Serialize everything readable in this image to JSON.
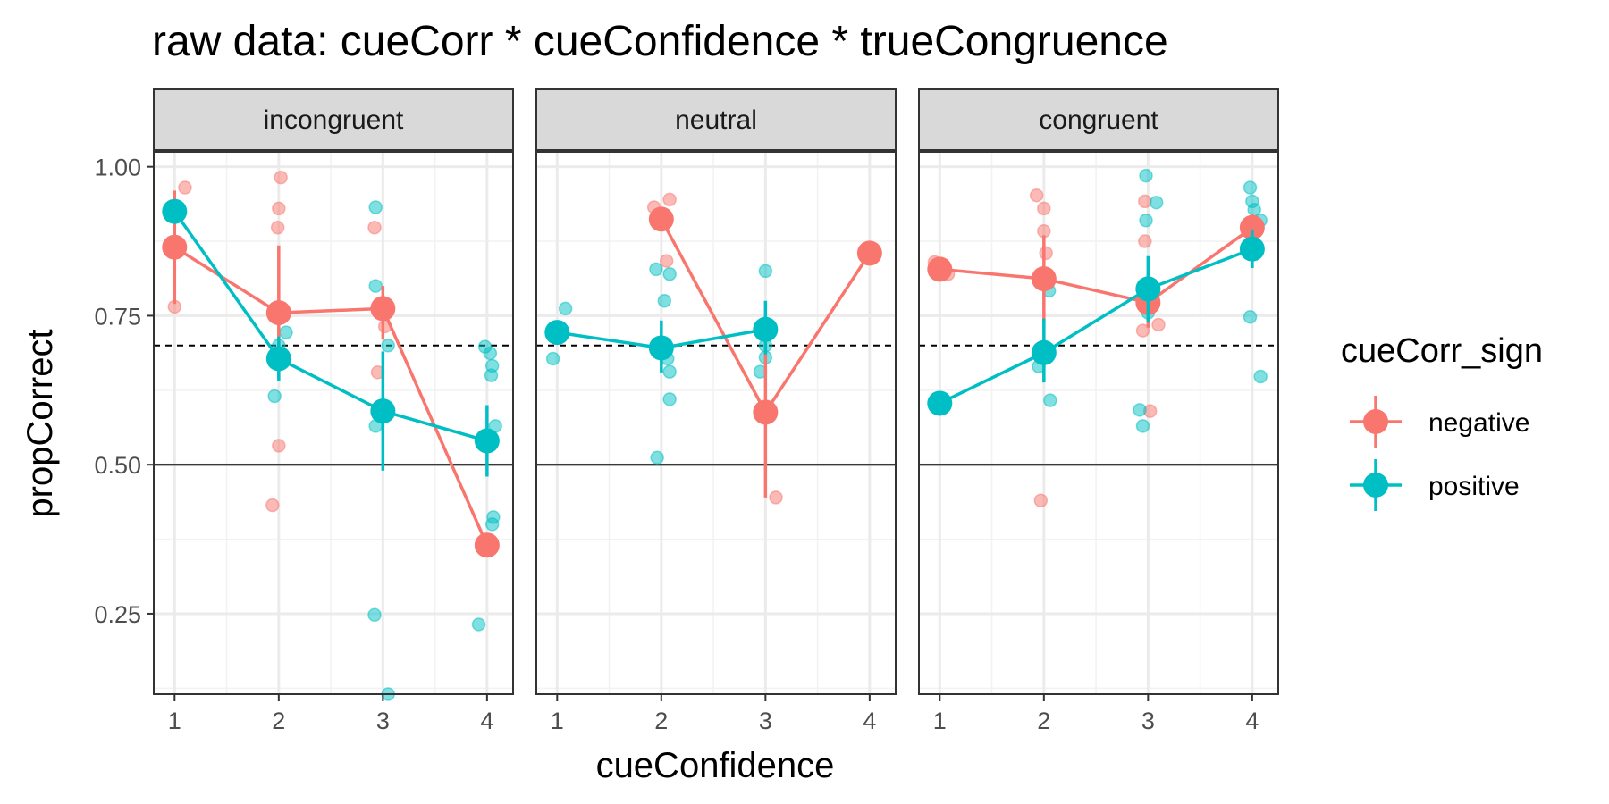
{
  "chart_data": {
    "type": "scatter",
    "title": "raw data: cueCorr * cueConfidence * trueCongruence",
    "xlabel": "cueConfidence",
    "ylabel": "propCorrect",
    "x_ticks": [
      1,
      2,
      3,
      4
    ],
    "y_ticks": [
      0.25,
      0.5,
      0.75,
      1.0
    ],
    "y_tick_labels": [
      "0.25",
      "0.50",
      "0.75",
      "1.00"
    ],
    "xlim": [
      0.8,
      4.25
    ],
    "ylim": [
      0.115,
      1.025
    ],
    "reference_lines": [
      {
        "y": 0.7,
        "style": "dashed"
      },
      {
        "y": 0.5,
        "style": "solid"
      }
    ],
    "grid": true,
    "legend": {
      "title": "cueCorr_sign",
      "position": "right",
      "entries": [
        "negative",
        "positive"
      ]
    },
    "colors": {
      "negative": "#F8766D",
      "positive": "#00BFC4"
    },
    "facets": [
      {
        "label": "incongruent",
        "series": [
          {
            "name": "negative",
            "means": [
              0.865,
              0.755,
              0.762,
              0.365
            ],
            "err_low": [
              0.77,
              0.645,
              0.71,
              0.365
            ],
            "err_high": [
              0.96,
              0.868,
              0.8,
              0.365
            ],
            "points": [
              [
                1.1,
                0.965
              ],
              [
                1.0,
                0.765
              ],
              [
                2.02,
                0.982
              ],
              [
                2.0,
                0.93
              ],
              [
                1.99,
                0.898
              ],
              [
                2.0,
                0.532
              ],
              [
                1.94,
                0.432
              ],
              [
                2.92,
                0.898
              ],
              [
                3.02,
                0.732
              ],
              [
                2.95,
                0.655
              ]
            ]
          },
          {
            "name": "positive",
            "means": [
              0.925,
              0.678,
              0.59,
              0.54
            ],
            "err_low": [
              0.925,
              0.64,
              0.49,
              0.48
            ],
            "err_high": [
              0.925,
              0.715,
              0.69,
              0.6
            ],
            "points": [
              [
                2.0,
                0.7
              ],
              [
                2.07,
                0.722
              ],
              [
                1.96,
                0.615
              ],
              [
                2.93,
                0.932
              ],
              [
                2.93,
                0.8
              ],
              [
                3.05,
                0.7
              ],
              [
                2.93,
                0.565
              ],
              [
                2.92,
                0.248
              ],
              [
                3.05,
                0.115
              ],
              [
                3.05,
                0.586
              ],
              [
                3.98,
                0.698
              ],
              [
                4.03,
                0.687
              ],
              [
                4.05,
                0.666
              ],
              [
                4.04,
                0.65
              ],
              [
                4.08,
                0.565
              ],
              [
                4.06,
                0.412
              ],
              [
                4.05,
                0.4
              ],
              [
                3.92,
                0.232
              ]
            ]
          }
        ]
      },
      {
        "label": "neutral",
        "series": [
          {
            "name": "negative",
            "means": [
              null,
              0.912,
              0.588,
              0.855
            ],
            "err_low": [
              null,
              0.912,
              0.445,
              0.855
            ],
            "err_high": [
              null,
              0.912,
              0.7,
              0.855
            ],
            "points": [
              [
                1.93,
                0.932
              ],
              [
                2.08,
                0.945
              ],
              [
                2.05,
                0.842
              ],
              [
                3.1,
                0.445
              ]
            ]
          },
          {
            "name": "positive",
            "means": [
              0.722,
              0.696,
              0.727,
              null
            ],
            "err_low": [
              0.722,
              0.655,
              0.685,
              null
            ],
            "err_high": [
              0.722,
              0.742,
              0.775,
              null
            ],
            "points": [
              [
                1.08,
                0.762
              ],
              [
                0.96,
                0.678
              ],
              [
                1.95,
                0.828
              ],
              [
                2.08,
                0.82
              ],
              [
                2.03,
                0.775
              ],
              [
                2.06,
                0.678
              ],
              [
                2.08,
                0.656
              ],
              [
                2.08,
                0.61
              ],
              [
                1.96,
                0.512
              ],
              [
                3.0,
                0.825
              ],
              [
                3.0,
                0.7
              ],
              [
                3.0,
                0.68
              ],
              [
                2.95,
                0.656
              ]
            ]
          }
        ]
      },
      {
        "label": "congruent",
        "series": [
          {
            "name": "negative",
            "means": [
              0.828,
              0.812,
              0.772,
              0.898
            ],
            "err_low": [
              0.82,
              0.74,
              0.73,
              0.87
            ],
            "err_high": [
              0.835,
              0.885,
              0.82,
              0.92
            ],
            "points": [
              [
                0.95,
                0.84
              ],
              [
                1.0,
                0.828
              ],
              [
                1.08,
                0.82
              ],
              [
                1.93,
                0.952
              ],
              [
                2.0,
                0.93
              ],
              [
                2.0,
                0.892
              ],
              [
                2.02,
                0.855
              ],
              [
                1.97,
                0.44
              ],
              [
                2.97,
                0.942
              ],
              [
                2.97,
                0.875
              ],
              [
                3.1,
                0.735
              ],
              [
                2.95,
                0.725
              ],
              [
                3.02,
                0.59
              ]
            ]
          },
          {
            "name": "positive",
            "means": [
              0.603,
              0.688,
              0.795,
              0.862
            ],
            "err_low": [
              0.603,
              0.638,
              0.74,
              0.83
            ],
            "err_high": [
              0.603,
              0.745,
              0.85,
              0.895
            ],
            "points": [
              [
                1.95,
                0.665
              ],
              [
                2.05,
                0.792
              ],
              [
                2.06,
                0.608
              ],
              [
                2.98,
                0.985
              ],
              [
                3.08,
                0.94
              ],
              [
                2.98,
                0.91
              ],
              [
                3.0,
                0.755
              ],
              [
                2.92,
                0.592
              ],
              [
                2.95,
                0.565
              ],
              [
                3.98,
                0.965
              ],
              [
                4.0,
                0.942
              ],
              [
                4.02,
                0.928
              ],
              [
                4.08,
                0.91
              ],
              [
                3.98,
                0.748
              ],
              [
                4.08,
                0.648
              ]
            ]
          }
        ]
      }
    ]
  }
}
